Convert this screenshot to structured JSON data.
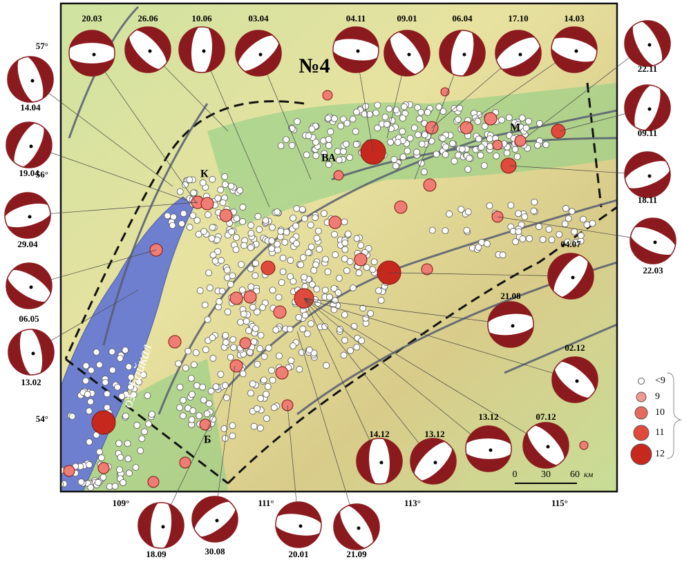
{
  "axes": {
    "lat_labels": [
      "57°",
      "56°",
      "54°"
    ],
    "lon_labels": [
      "109°",
      "111°",
      "113°",
      "115°"
    ]
  },
  "places": {
    "zone": "№4",
    "k": "К",
    "va": "ВА",
    "m": "М",
    "b": "Б",
    "lake": "оз. Байкал"
  },
  "mechanisms": [
    {
      "date": "20.03"
    },
    {
      "date": "26.06"
    },
    {
      "date": "10.06"
    },
    {
      "date": "03.04"
    },
    {
      "date": "04.11"
    },
    {
      "date": "09.01"
    },
    {
      "date": "06.04"
    },
    {
      "date": "17.10"
    },
    {
      "date": "14.03"
    },
    {
      "date": "22.11"
    },
    {
      "date": "09.11"
    },
    {
      "date": "18.11"
    },
    {
      "date": "22.03"
    },
    {
      "date": "14.04"
    },
    {
      "date": "19.04"
    },
    {
      "date": "29.04"
    },
    {
      "date": "06.05"
    },
    {
      "date": "13.02"
    },
    {
      "date": "04.07"
    },
    {
      "date": "21.08"
    },
    {
      "date": "02.12"
    },
    {
      "date": "14.12"
    },
    {
      "date": "13.12"
    },
    {
      "date": "13.12"
    },
    {
      "date": "07.12"
    },
    {
      "date": "18.09"
    },
    {
      "date": "30.08"
    },
    {
      "date": "20.01"
    },
    {
      "date": "21.09"
    }
  ],
  "legend": {
    "items": [
      "<9",
      "9",
      "10",
      "11",
      "12"
    ]
  },
  "scale": {
    "labels": [
      "0",
      "30",
      "60"
    ],
    "unit": "км"
  }
}
